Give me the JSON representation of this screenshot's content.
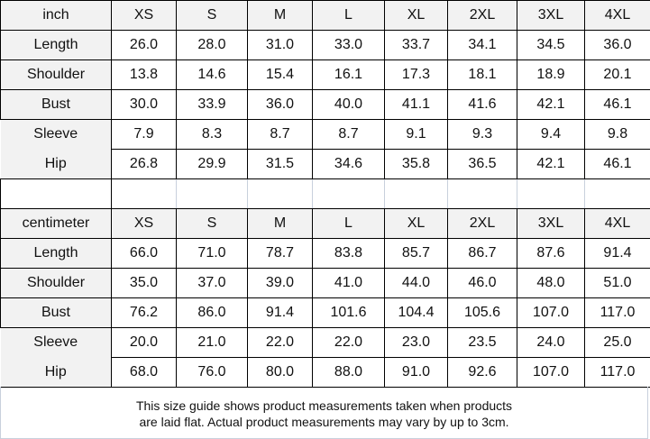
{
  "sizes": [
    "XS",
    "S",
    "M",
    "L",
    "XL",
    "2XL",
    "3XL",
    "4XL"
  ],
  "inch": {
    "unit": "inch",
    "rows": [
      {
        "label": "Length",
        "values": [
          "26.0",
          "28.0",
          "31.0",
          "33.0",
          "33.7",
          "34.1",
          "34.5",
          "36.0"
        ]
      },
      {
        "label": "Shoulder",
        "values": [
          "13.8",
          "14.6",
          "15.4",
          "16.1",
          "17.3",
          "18.1",
          "18.9",
          "20.1"
        ]
      },
      {
        "label": "Bust",
        "values": [
          "30.0",
          "33.9",
          "36.0",
          "40.0",
          "41.1",
          "41.6",
          "42.1",
          "46.1"
        ]
      },
      {
        "label": "Sleeve",
        "values": [
          "7.9",
          "8.3",
          "8.7",
          "8.7",
          "9.1",
          "9.3",
          "9.4",
          "9.8"
        ]
      },
      {
        "label": "Hip",
        "values": [
          "26.8",
          "29.9",
          "31.5",
          "34.6",
          "35.8",
          "36.5",
          "42.1",
          "46.1"
        ]
      }
    ]
  },
  "cm": {
    "unit": "centimeter",
    "rows": [
      {
        "label": "Length",
        "values": [
          "66.0",
          "71.0",
          "78.7",
          "83.8",
          "85.7",
          "86.7",
          "87.6",
          "91.4"
        ]
      },
      {
        "label": "Shoulder",
        "values": [
          "35.0",
          "37.0",
          "39.0",
          "41.0",
          "44.0",
          "46.0",
          "48.0",
          "51.0"
        ]
      },
      {
        "label": "Bust",
        "values": [
          "76.2",
          "86.0",
          "91.4",
          "101.6",
          "104.4",
          "105.6",
          "107.0",
          "117.0"
        ]
      },
      {
        "label": "Sleeve",
        "values": [
          "20.0",
          "21.0",
          "22.0",
          "22.0",
          "23.0",
          "23.5",
          "24.0",
          "25.0"
        ]
      },
      {
        "label": "Hip",
        "values": [
          "68.0",
          "76.0",
          "80.0",
          "88.0",
          "91.0",
          "92.6",
          "107.0",
          "117.0"
        ]
      }
    ]
  },
  "footer": {
    "line1": "This size guide shows product measurements taken when products",
    "line2": "are laid flat. Actual product measurements may vary by up to 3cm."
  }
}
